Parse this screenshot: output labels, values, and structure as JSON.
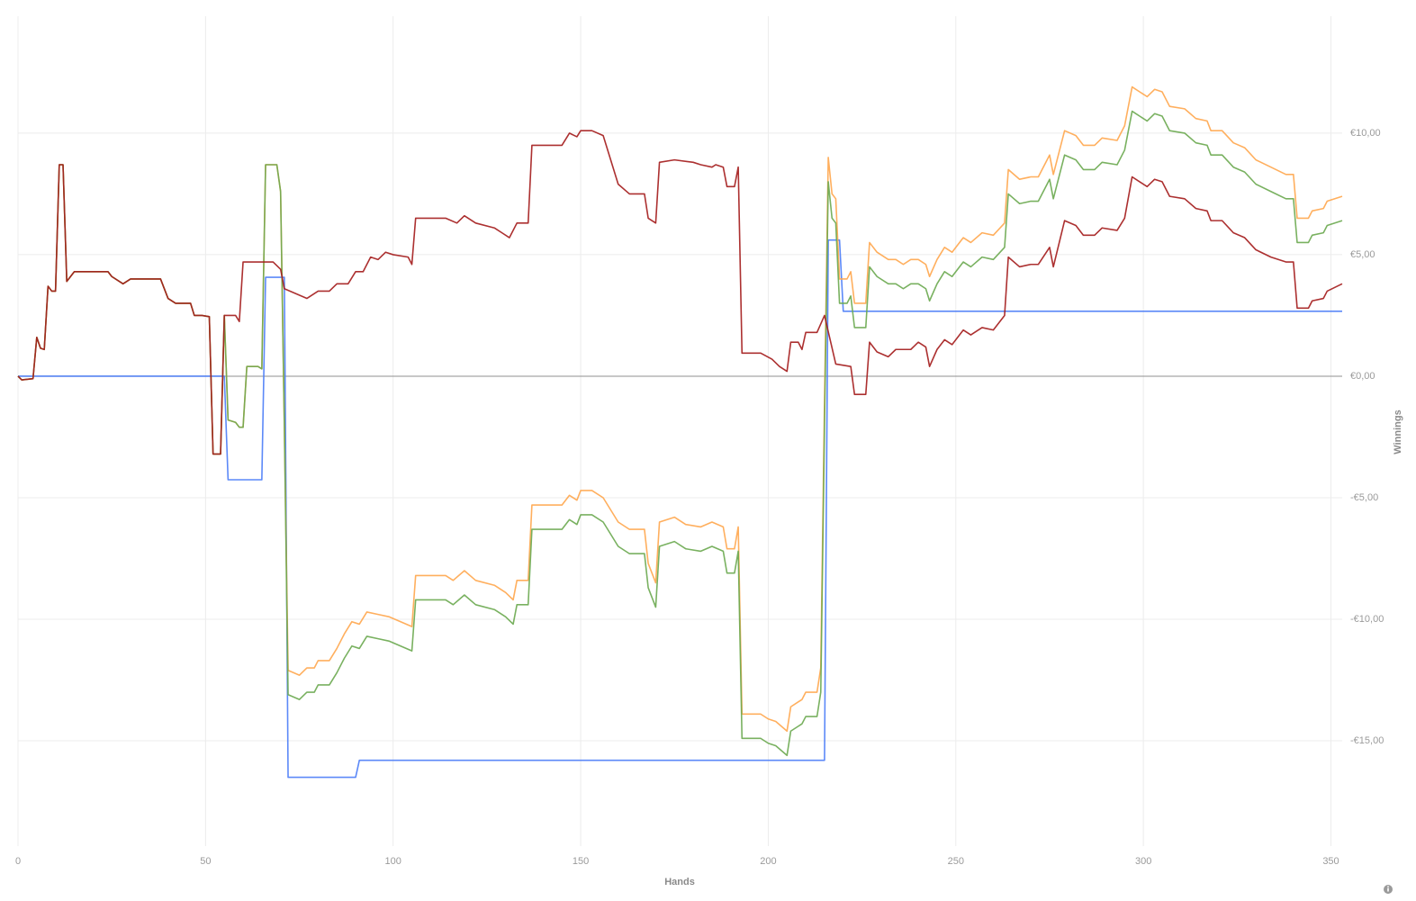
{
  "chart_data": {
    "type": "line",
    "x_label": "Hands",
    "y_label": "Winnings",
    "xlim": [
      0,
      353
    ],
    "ylim": [
      -19.33,
      14.81
    ],
    "xticks": [
      0,
      50,
      100,
      150,
      200,
      250,
      300,
      350
    ],
    "yticks": [
      {
        "value": -15,
        "label": "-€15,00"
      },
      {
        "value": -10,
        "label": "-€10,00"
      },
      {
        "value": -5,
        "label": "-€5,00"
      },
      {
        "value": 0,
        "label": "€0,00"
      },
      {
        "value": 5,
        "label": "€5,00"
      },
      {
        "value": 10,
        "label": "€10,00"
      }
    ],
    "grid": true,
    "series": [
      {
        "color": "#4a7cf7",
        "x": [
          0,
          55,
          56,
          65,
          66,
          71,
          72,
          90,
          91,
          215,
          216,
          219,
          220,
          353
        ],
        "values": [
          0,
          0,
          -4.26,
          -4.26,
          4.07,
          4.07,
          -16.5,
          -16.5,
          -15.8,
          -15.8,
          5.6,
          5.6,
          2.67,
          2.67
        ]
      },
      {
        "color": "#ffa64d",
        "x": [
          0,
          1,
          4,
          5,
          6,
          7,
          8,
          9,
          10,
          11,
          12,
          13,
          15,
          24,
          25,
          28,
          30,
          38,
          40,
          42,
          46,
          47,
          49,
          51,
          52,
          54,
          55,
          56,
          58,
          59,
          60,
          61,
          64,
          65,
          66,
          69,
          70,
          71,
          72,
          75,
          77,
          79,
          80,
          83,
          85,
          87,
          89,
          91,
          93,
          96,
          99,
          105,
          106,
          114,
          116,
          119,
          122,
          127,
          130,
          132,
          133,
          136,
          137,
          145,
          147,
          149,
          150,
          153,
          156,
          160,
          163,
          167,
          168,
          170,
          171,
          175,
          178,
          182,
          185,
          188,
          189,
          191,
          192,
          193,
          198,
          200,
          202,
          205,
          206,
          208,
          209,
          210,
          213,
          214,
          215,
          216,
          217,
          218,
          219,
          221,
          222,
          223,
          226,
          227,
          229,
          232,
          234,
          236,
          238,
          240,
          242,
          243,
          245,
          247,
          249,
          252,
          254,
          257,
          260,
          263,
          264,
          267,
          270,
          272,
          275,
          276,
          279,
          282,
          284,
          287,
          289,
          293,
          295,
          297,
          299,
          301,
          303,
          305,
          307,
          311,
          314,
          317,
          318,
          321,
          324,
          327,
          330,
          334,
          338,
          340,
          341,
          344,
          345,
          348,
          349,
          353
        ],
        "values": [
          0,
          -0.15,
          -0.1,
          1.6,
          1.15,
          1.1,
          3.7,
          3.5,
          3.5,
          8.7,
          8.7,
          3.9,
          4.3,
          4.3,
          4.1,
          3.8,
          4.0,
          4.0,
          3.2,
          3.0,
          3.0,
          2.5,
          2.5,
          2.45,
          -3.2,
          -3.2,
          2.5,
          -1.8,
          -1.9,
          -2.1,
          -2.1,
          0.4,
          0.4,
          0.3,
          8.7,
          8.7,
          7.6,
          -2,
          -12.1,
          -12.3,
          -12.0,
          -12.0,
          -11.7,
          -11.7,
          -11.2,
          -10.6,
          -10.1,
          -10.2,
          -9.7,
          -9.8,
          -9.9,
          -10.3,
          -8.2,
          -8.2,
          -8.4,
          -8.0,
          -8.4,
          -8.6,
          -8.9,
          -9.2,
          -8.4,
          -8.4,
          -5.3,
          -5.3,
          -4.9,
          -5.1,
          -4.7,
          -4.7,
          -5.0,
          -6.0,
          -6.3,
          -6.3,
          -7.7,
          -8.5,
          -6.0,
          -5.8,
          -6.1,
          -6.2,
          -6.0,
          -6.2,
          -7.1,
          -7.1,
          -6.2,
          -13.9,
          -13.9,
          -14.1,
          -14.2,
          -14.6,
          -13.6,
          -13.4,
          -13.3,
          -13.0,
          -13.0,
          -12.0,
          -1.0,
          9.0,
          7.5,
          7.3,
          4.0,
          4.0,
          4.3,
          3.0,
          3.0,
          5.5,
          5.1,
          4.8,
          4.8,
          4.6,
          4.8,
          4.8,
          4.6,
          4.1,
          4.8,
          5.3,
          5.1,
          5.7,
          5.5,
          5.9,
          5.8,
          6.3,
          8.5,
          8.1,
          8.2,
          8.2,
          9.1,
          8.3,
          10.1,
          9.9,
          9.5,
          9.5,
          9.8,
          9.7,
          10.3,
          11.9,
          11.7,
          11.5,
          11.8,
          11.7,
          11.1,
          11.0,
          10.6,
          10.5,
          10.1,
          10.1,
          9.6,
          9.4,
          8.9,
          8.6,
          8.3,
          8.3,
          6.5,
          6.5,
          6.8,
          6.9,
          7.2,
          7.4
        ]
      },
      {
        "color": "#6aa84f",
        "x": [
          0,
          1,
          4,
          5,
          6,
          7,
          8,
          9,
          10,
          11,
          12,
          13,
          15,
          24,
          25,
          28,
          30,
          38,
          40,
          42,
          46,
          47,
          49,
          51,
          52,
          54,
          55,
          56,
          58,
          59,
          60,
          61,
          64,
          65,
          66,
          69,
          70,
          71,
          72,
          75,
          77,
          79,
          80,
          83,
          85,
          87,
          89,
          91,
          93,
          96,
          99,
          105,
          106,
          114,
          116,
          119,
          122,
          127,
          130,
          132,
          133,
          136,
          137,
          145,
          147,
          149,
          150,
          153,
          156,
          160,
          163,
          167,
          168,
          170,
          171,
          175,
          178,
          182,
          185,
          188,
          189,
          191,
          192,
          193,
          198,
          200,
          202,
          205,
          206,
          208,
          209,
          210,
          213,
          214,
          215,
          216,
          217,
          218,
          219,
          221,
          222,
          223,
          226,
          227,
          229,
          232,
          234,
          236,
          238,
          240,
          242,
          243,
          245,
          247,
          249,
          252,
          254,
          257,
          260,
          263,
          264,
          267,
          270,
          272,
          275,
          276,
          279,
          282,
          284,
          287,
          289,
          293,
          295,
          297,
          299,
          301,
          303,
          305,
          307,
          311,
          314,
          317,
          318,
          321,
          324,
          327,
          330,
          334,
          338,
          340,
          341,
          344,
          345,
          348,
          349,
          353
        ],
        "values": [
          0,
          -0.15,
          -0.1,
          1.6,
          1.15,
          1.1,
          3.7,
          3.5,
          3.5,
          8.7,
          8.7,
          3.9,
          4.3,
          4.3,
          4.1,
          3.8,
          4.0,
          4.0,
          3.2,
          3.0,
          3.0,
          2.5,
          2.5,
          2.45,
          -3.2,
          -3.2,
          2.5,
          -1.8,
          -1.9,
          -2.1,
          -2.1,
          0.4,
          0.4,
          0.3,
          8.7,
          8.7,
          7.6,
          -2,
          -13.1,
          -13.3,
          -13.0,
          -13.0,
          -12.7,
          -12.7,
          -12.2,
          -11.6,
          -11.1,
          -11.2,
          -10.7,
          -10.8,
          -10.9,
          -11.3,
          -9.2,
          -9.2,
          -9.4,
          -9.0,
          -9.4,
          -9.6,
          -9.9,
          -10.2,
          -9.4,
          -9.4,
          -6.3,
          -6.3,
          -5.9,
          -6.1,
          -5.7,
          -5.7,
          -6.0,
          -7.0,
          -7.3,
          -7.3,
          -8.7,
          -9.5,
          -7.0,
          -6.8,
          -7.1,
          -7.2,
          -7.0,
          -7.2,
          -8.1,
          -8.1,
          -7.2,
          -14.9,
          -14.9,
          -15.1,
          -15.2,
          -15.6,
          -14.6,
          -14.4,
          -14.3,
          -14.0,
          -14.0,
          -13.0,
          -2.0,
          8.0,
          6.5,
          6.3,
          3.0,
          3.0,
          3.3,
          2.0,
          2.0,
          4.5,
          4.1,
          3.8,
          3.8,
          3.6,
          3.8,
          3.8,
          3.6,
          3.1,
          3.8,
          4.3,
          4.1,
          4.7,
          4.5,
          4.9,
          4.8,
          5.3,
          7.5,
          7.1,
          7.2,
          7.2,
          8.1,
          7.3,
          9.1,
          8.9,
          8.5,
          8.5,
          8.8,
          8.7,
          9.3,
          10.9,
          10.7,
          10.5,
          10.8,
          10.7,
          10.1,
          10.0,
          9.6,
          9.5,
          9.1,
          9.1,
          8.6,
          8.4,
          7.9,
          7.6,
          7.3,
          7.3,
          5.5,
          5.5,
          5.8,
          5.9,
          6.2,
          6.4
        ]
      },
      {
        "color": "#a31a1a",
        "x": [
          0,
          1,
          4,
          5,
          6,
          7,
          8,
          9,
          10,
          11,
          12,
          13,
          15,
          24,
          25,
          28,
          30,
          38,
          40,
          42,
          46,
          47,
          49,
          51,
          52,
          54,
          55,
          58,
          59,
          60,
          68,
          70,
          71,
          74,
          77,
          80,
          83,
          85,
          88,
          90,
          92,
          94,
          96,
          98,
          100,
          104,
          105,
          106,
          114,
          117,
          119,
          122,
          127,
          129,
          131,
          133,
          136,
          137,
          145,
          147,
          149,
          150,
          153,
          156,
          160,
          163,
          167,
          168,
          170,
          171,
          175,
          180,
          182,
          185,
          186,
          188,
          189,
          191,
          192,
          193,
          198,
          201,
          203,
          205,
          206,
          208,
          209,
          210,
          213,
          215,
          218,
          222,
          223,
          226,
          227,
          229,
          232,
          234,
          238,
          240,
          242,
          243,
          245,
          247,
          249,
          252,
          254,
          257,
          260,
          263,
          264,
          267,
          270,
          272,
          275,
          276,
          279,
          282,
          284,
          287,
          289,
          293,
          295,
          297,
          299,
          301,
          303,
          305,
          307,
          311,
          314,
          317,
          318,
          321,
          324,
          327,
          330,
          334,
          338,
          340,
          341,
          344,
          345,
          348,
          349,
          353
        ],
        "values": [
          0,
          -0.15,
          -0.1,
          1.6,
          1.15,
          1.1,
          3.7,
          3.5,
          3.5,
          8.7,
          8.7,
          3.9,
          4.3,
          4.3,
          4.1,
          3.8,
          4.0,
          4.0,
          3.2,
          3.0,
          3.0,
          2.5,
          2.5,
          2.45,
          -3.2,
          -3.2,
          2.5,
          2.5,
          2.25,
          4.7,
          4.7,
          4.4,
          3.6,
          3.4,
          3.2,
          3.5,
          3.5,
          3.8,
          3.8,
          4.3,
          4.3,
          4.9,
          4.8,
          5.1,
          5.0,
          4.9,
          4.6,
          6.5,
          6.5,
          6.3,
          6.6,
          6.3,
          6.1,
          5.9,
          5.7,
          6.3,
          6.3,
          9.5,
          9.5,
          10.0,
          9.85,
          10.1,
          10.1,
          9.9,
          7.9,
          7.5,
          7.5,
          6.5,
          6.3,
          8.8,
          8.9,
          8.8,
          8.7,
          8.6,
          8.7,
          8.6,
          7.8,
          7.8,
          8.6,
          0.95,
          0.95,
          0.7,
          0.4,
          0.2,
          1.4,
          1.4,
          1.1,
          1.8,
          1.8,
          2.5,
          0.5,
          0.4,
          -0.75,
          -0.75,
          1.4,
          1.0,
          0.8,
          1.1,
          1.1,
          1.4,
          1.2,
          0.4,
          1.1,
          1.5,
          1.3,
          1.9,
          1.7,
          2.0,
          1.9,
          2.5,
          4.9,
          4.5,
          4.6,
          4.6,
          5.3,
          4.5,
          6.4,
          6.2,
          5.8,
          5.8,
          6.1,
          6.0,
          6.5,
          8.2,
          8.0,
          7.8,
          8.1,
          8.0,
          7.4,
          7.3,
          6.9,
          6.8,
          6.4,
          6.4,
          5.9,
          5.7,
          5.2,
          4.9,
          4.7,
          4.7,
          2.8,
          2.8,
          3.1,
          3.2,
          3.5,
          3.8
        ]
      }
    ]
  }
}
